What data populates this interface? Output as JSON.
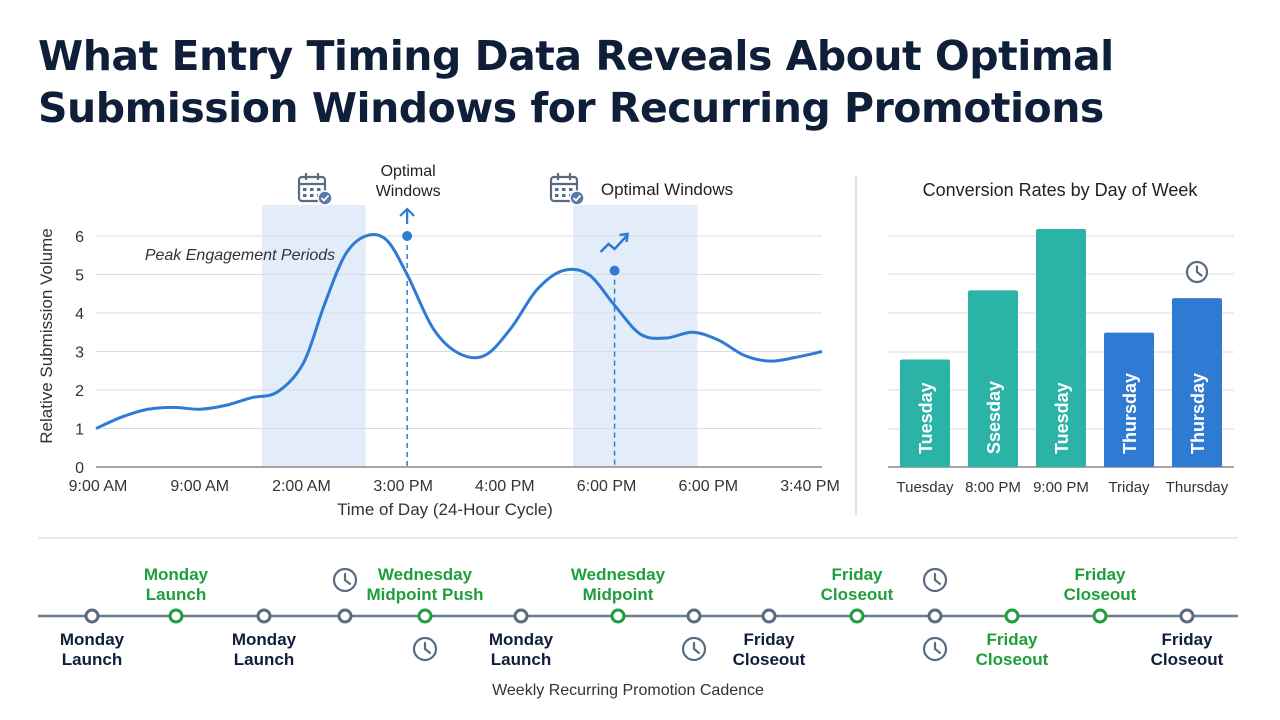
{
  "title_line1": "What Entry Timing Data Reveals About Optimal",
  "title_line2": "Submission Windows for Recurring Promotions",
  "colors": {
    "title": "#0f1f3a",
    "line": "#2f7bd4",
    "band": "#e3edfa",
    "teal": "#2bb3a7",
    "blue": "#2f7bd4",
    "green": "#1e9e3c",
    "node_gray": "#5a6b80",
    "axis": "#555555"
  },
  "chart_data": [
    {
      "type": "line",
      "title": "",
      "xlabel": "Time of Day (24-Hour Cycle)",
      "ylabel": "Relative Submission Volume",
      "ylim": [
        0,
        6
      ],
      "yticks": [
        0,
        1,
        2,
        3,
        4,
        5,
        6
      ],
      "xtick_labels": [
        "9:00 AM",
        "9:00 AM",
        "2:00 AM",
        "3:00 PM",
        "4:00 PM",
        "6:00 PM",
        "6:00 PM",
        "3:40 PM"
      ],
      "grid": true,
      "x": [
        0,
        0.25,
        0.5,
        0.75,
        1.0,
        1.25,
        1.5,
        1.75,
        2.0,
        2.2,
        2.4,
        2.6,
        2.8,
        3.0,
        3.25,
        3.5,
        3.75,
        4.0,
        4.25,
        4.5,
        4.75,
        5.0,
        5.25,
        5.5,
        5.75,
        6.0,
        6.25,
        6.5,
        6.75,
        7.0
      ],
      "series": [
        {
          "values": [
            1.0,
            1.3,
            1.5,
            1.55,
            1.5,
            1.6,
            1.8,
            1.95,
            2.7,
            4.2,
            5.5,
            6.0,
            5.9,
            5.0,
            3.6,
            2.95,
            2.9,
            3.6,
            4.6,
            5.1,
            5.0,
            4.2,
            3.45,
            3.35,
            3.5,
            3.3,
            2.9,
            2.75,
            2.85,
            3.0
          ]
        }
      ],
      "shaded_regions": [
        {
          "from": 1.6,
          "to": 2.6,
          "label": "Peak Engagement Periods"
        },
        {
          "from": 4.6,
          "to": 5.8,
          "label": "Optimal Windows"
        }
      ],
      "annotations": [
        {
          "x": 3.0,
          "y": 6.0,
          "text": "Optimal Windows",
          "text_line1": "Optimal",
          "text_line2": "Windows",
          "marker": "up-arrow"
        },
        {
          "x": 5.0,
          "y": 5.1,
          "text": "",
          "marker": "trend-arrow"
        }
      ]
    },
    {
      "type": "bar",
      "title": "Conversion Rates by Day of Week",
      "categories": [
        "Tuesday",
        "8:00 PM",
        "9:00 PM",
        "Triday",
        "Thursday"
      ],
      "bar_labels": [
        "Tuesday",
        "Ssesday",
        "Tuesday",
        "Thursday",
        "Thursday"
      ],
      "values": [
        2.8,
        4.6,
        6.2,
        3.5,
        4.4
      ],
      "bar_colors": [
        "#2bb3a7",
        "#2bb3a7",
        "#2bb3a7",
        "#2f7bd4",
        "#2f7bd4"
      ],
      "ylim": [
        0,
        7
      ],
      "grid": true,
      "annotations": [
        {
          "category": "Thursday",
          "marker": "clock-icon"
        }
      ]
    }
  ],
  "timeline": {
    "caption": "Weekly Recurring Promotion Cadence",
    "nodes": [
      {
        "style": "gray",
        "label": "Monday\nLaunch",
        "pos": "below",
        "icon": "none"
      },
      {
        "style": "green",
        "label": "Monday\nLaunch",
        "pos": "above",
        "icon": "none"
      },
      {
        "style": "gray",
        "label": "Monday\nLaunch",
        "pos": "below",
        "icon": "none"
      },
      {
        "style": "gray",
        "label": "",
        "pos": "above",
        "icon": "clock-above"
      },
      {
        "style": "green",
        "label": "Wednesday\nMidpoint Push",
        "pos": "above",
        "icon": "clock-below"
      },
      {
        "style": "gray",
        "label": "Monday\nLaunch",
        "pos": "below",
        "icon": "none"
      },
      {
        "style": "green",
        "label": "Wednesday\nMidpoint",
        "pos": "above",
        "icon": "none"
      },
      {
        "style": "gray",
        "label": "",
        "pos": "below",
        "icon": "clock-below"
      },
      {
        "style": "gray",
        "label": "Friday\nCloseout",
        "pos": "below",
        "icon": "none"
      },
      {
        "style": "green",
        "label": "Friday\nCloseout",
        "pos": "above",
        "icon": "none"
      },
      {
        "style": "gray",
        "label": "",
        "pos": "above",
        "icon": "clock-both"
      },
      {
        "style": "green",
        "label": "Friday\nCloseout",
        "pos": "below",
        "icon": "none"
      },
      {
        "style": "green",
        "label": "Friday\nCloseout",
        "pos": "above",
        "icon": "none"
      },
      {
        "style": "gray",
        "label": "Friday\nCloseout",
        "pos": "below",
        "icon": "none"
      }
    ]
  }
}
